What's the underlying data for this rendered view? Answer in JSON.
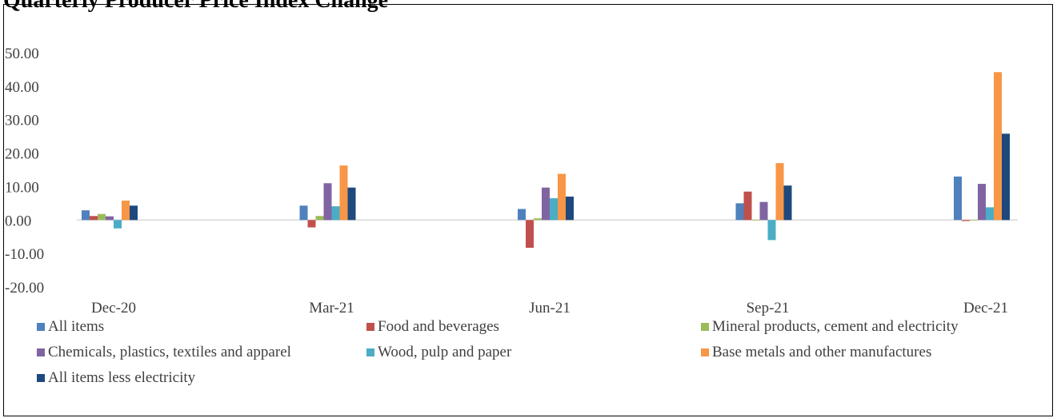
{
  "title": "Quarterly Producer Price Index Change",
  "chart_data": {
    "type": "bar",
    "title": "",
    "xlabel": "",
    "ylabel": "",
    "ylim": [
      -20,
      50
    ],
    "yticks": [
      "-20.00",
      "-10.00",
      "0.00",
      "10.00",
      "20.00",
      "30.00",
      "40.00",
      "50.00"
    ],
    "categories": [
      "Dec-20",
      "Mar-21",
      "Jun-21",
      "Sep-21",
      "Dec-21"
    ],
    "legend_position": "bottom",
    "series": [
      {
        "name": "All items",
        "color": "#4F81BD",
        "values": [
          2.9,
          4.3,
          3.3,
          5.0,
          13.0
        ]
      },
      {
        "name": "Food and beverages",
        "color": "#C0504D",
        "values": [
          1.2,
          -2.2,
          -8.3,
          8.5,
          -0.3
        ]
      },
      {
        "name": "Mineral products, cement and electricity",
        "color": "#9BBB59",
        "values": [
          1.8,
          1.2,
          0.5,
          0.1,
          0.1
        ]
      },
      {
        "name": "Chemicals, plastics, textiles and apparel",
        "color": "#8064A2",
        "values": [
          1.1,
          11.0,
          9.7,
          5.4,
          10.8
        ]
      },
      {
        "name": "Wood, pulp and paper",
        "color": "#4BACC6",
        "values": [
          -2.5,
          4.1,
          6.5,
          -6.0,
          3.8
        ]
      },
      {
        "name": "Base metals and other manufactures",
        "color": "#F79646",
        "values": [
          5.8,
          16.3,
          13.8,
          17.0,
          44.2
        ]
      },
      {
        "name": "All items less electricity",
        "color": "#1F497D",
        "values": [
          4.3,
          9.7,
          7.0,
          10.3,
          25.8
        ]
      }
    ]
  }
}
